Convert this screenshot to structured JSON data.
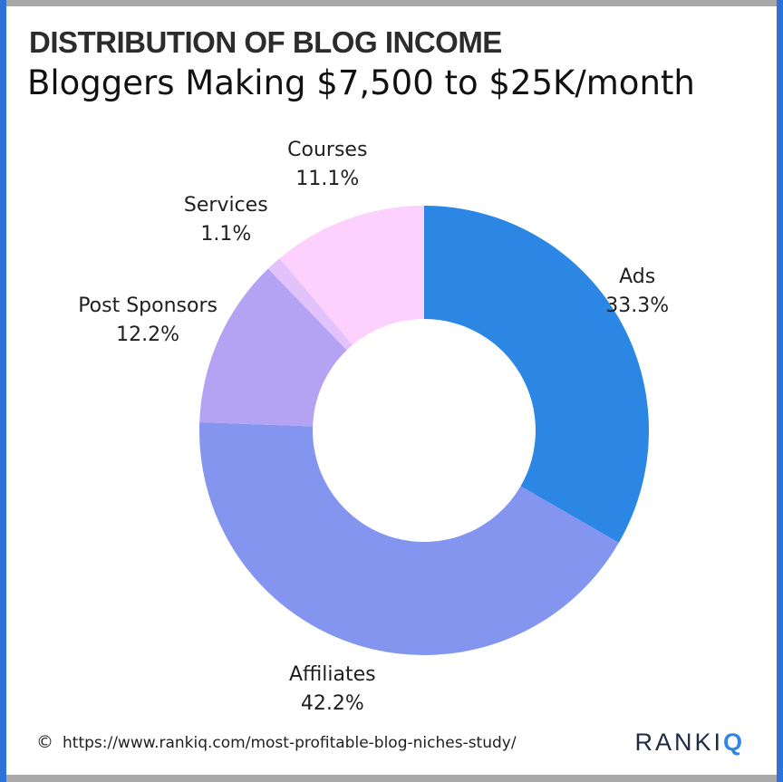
{
  "title": "DISTRIBUTION OF BLOG INCOME",
  "subtitle": "Bloggers Making $7,500 to $25K/month",
  "footer": {
    "copyright_symbol": "©",
    "source_url": "https://www.rankiq.com/most-profitable-blog-niches-study/",
    "brand_main": "RANKI",
    "brand_accent": "Q"
  },
  "colors": {
    "frame_edge": "#2b73d6",
    "brand_accent": "#2f86e6"
  },
  "chart_data": {
    "type": "pie",
    "variant": "donut",
    "start_angle": "12 o'clock",
    "direction": "clockwise",
    "slices": [
      {
        "label": "Ads",
        "value_text": "33.3%",
        "value": 33.3,
        "color": "#2b86e4"
      },
      {
        "label": "Affiliates",
        "value_text": "42.2%",
        "value": 42.2,
        "color": "#8395ee"
      },
      {
        "label": "Post Sponsors",
        "value_text": "12.2%",
        "value": 12.2,
        "color": "#b3a3f2"
      },
      {
        "label": "Services",
        "value_text": "1.1%",
        "value": 1.1,
        "color": "#e2c2fb"
      },
      {
        "label": "Courses",
        "value_text": "11.1%",
        "value": 11.1,
        "color": "#fdd1fe"
      }
    ]
  }
}
